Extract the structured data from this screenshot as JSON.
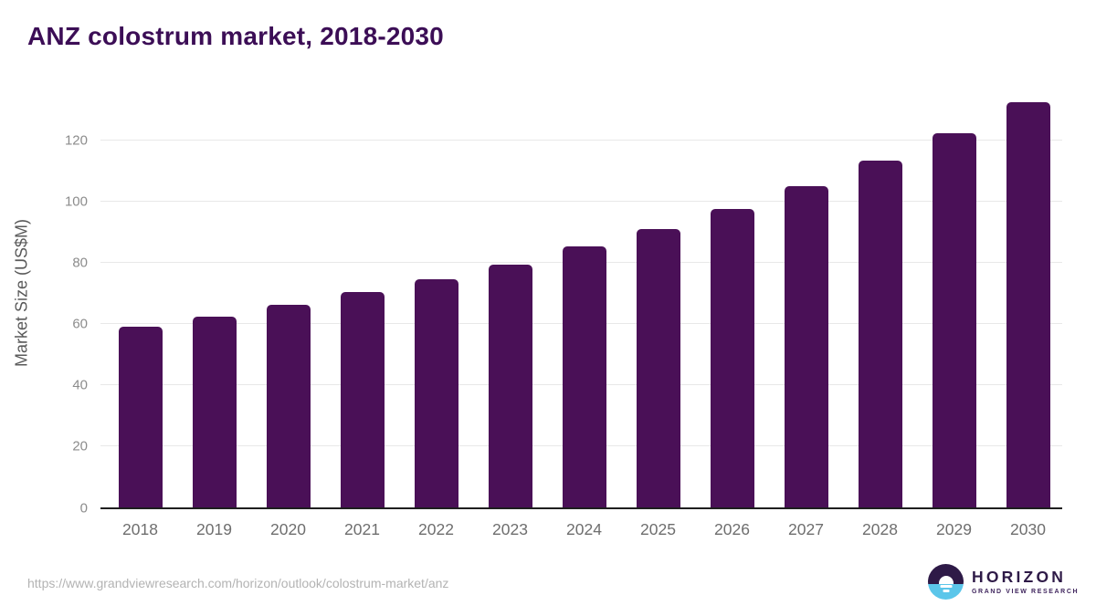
{
  "title": "ANZ colostrum market, 2018-2030",
  "chart_data": {
    "type": "bar",
    "title": "ANZ colostrum market, 2018-2030",
    "categories": [
      "2018",
      "2019",
      "2020",
      "2021",
      "2022",
      "2023",
      "2024",
      "2025",
      "2026",
      "2027",
      "2028",
      "2029",
      "2030"
    ],
    "values": [
      59.1,
      62.4,
      66.1,
      70.3,
      74.6,
      79.4,
      85.2,
      91.1,
      97.6,
      104.9,
      113.3,
      122.4,
      132.5
    ],
    "xlabel": "",
    "ylabel": "Market Size (US$M)",
    "ylim": [
      0,
      136
    ],
    "yticks": [
      0,
      20,
      40,
      60,
      80,
      100,
      120
    ],
    "grid": true,
    "legend": "none",
    "bar_color": "#4a1057",
    "gridline_color": "#e8e8e8",
    "axis_line_color": "#1f1f1f",
    "tick_label_color": "#8c8c8c",
    "x_label_color": "#6e6e6e"
  },
  "footer": {
    "source_url": "https://www.grandviewresearch.com/horizon/outlook/colostrum-market/anz",
    "logo_name": "HORIZON",
    "logo_subtitle": "GRAND VIEW RESEARCH",
    "logo_purple": "#2e1a47",
    "logo_blue": "#5bc6ea"
  }
}
